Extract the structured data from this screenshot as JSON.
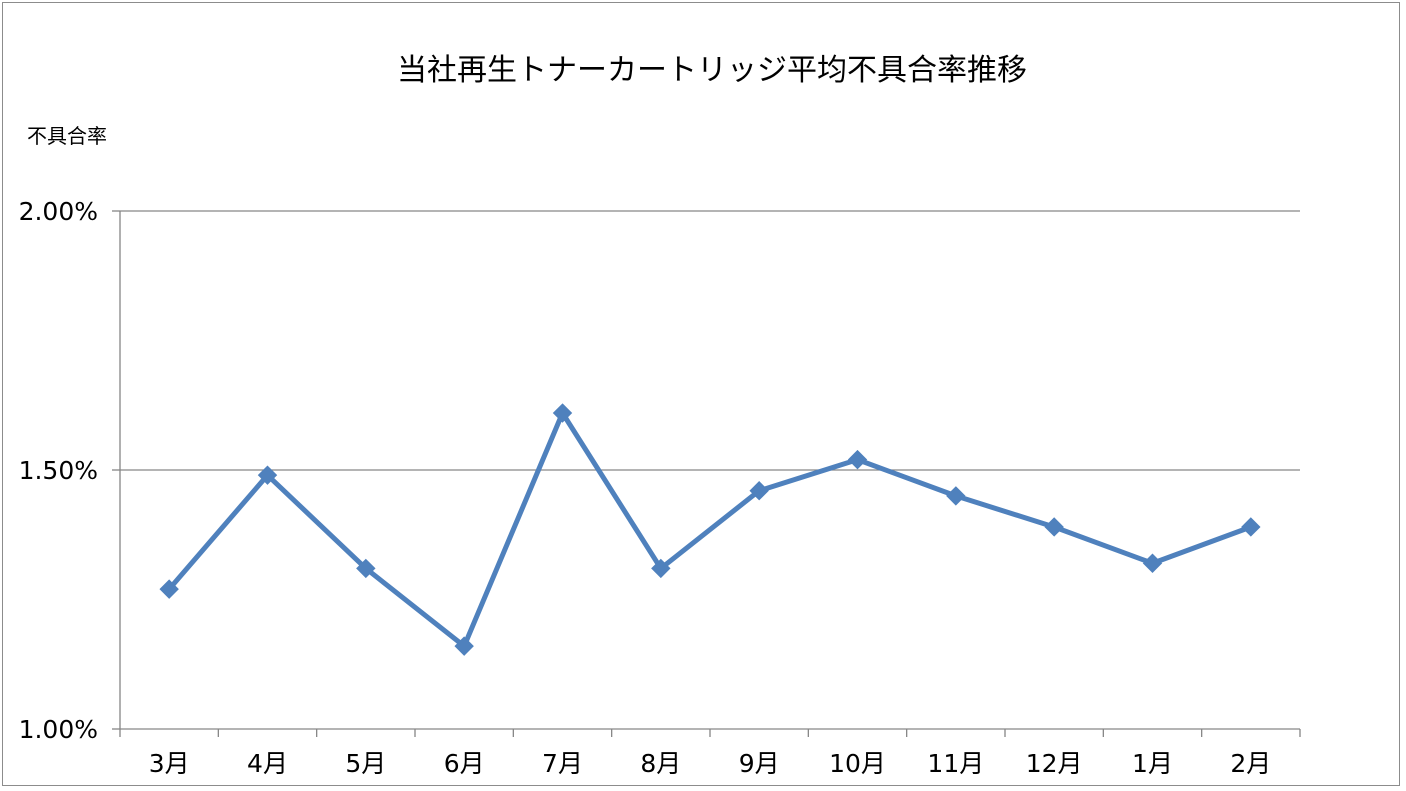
{
  "chart_data": {
    "type": "line",
    "title": "当社再生トナーカートリッジ平均不具合率推移",
    "ylabel": "不具合率",
    "xlabel": "",
    "categories": [
      "3月",
      "4月",
      "5月",
      "6月",
      "7月",
      "8月",
      "9月",
      "10月",
      "11月",
      "12月",
      "1月",
      "2月"
    ],
    "series": [
      {
        "values": [
          1.27,
          1.49,
          1.31,
          1.16,
          1.61,
          1.31,
          1.46,
          1.52,
          1.45,
          1.39,
          1.32,
          1.39
        ],
        "color": "#4f81bd",
        "marker": "diamond"
      }
    ],
    "ylim": [
      1.0,
      2.0
    ],
    "yticks": [
      1.0,
      1.5,
      2.0
    ],
    "ytick_labels": [
      "1.00%",
      "1.50%",
      "2.00%"
    ],
    "grid": true,
    "legend": "none",
    "colors": {
      "line": "#4f81bd",
      "grid": "#868686",
      "axis": "#868686"
    }
  }
}
